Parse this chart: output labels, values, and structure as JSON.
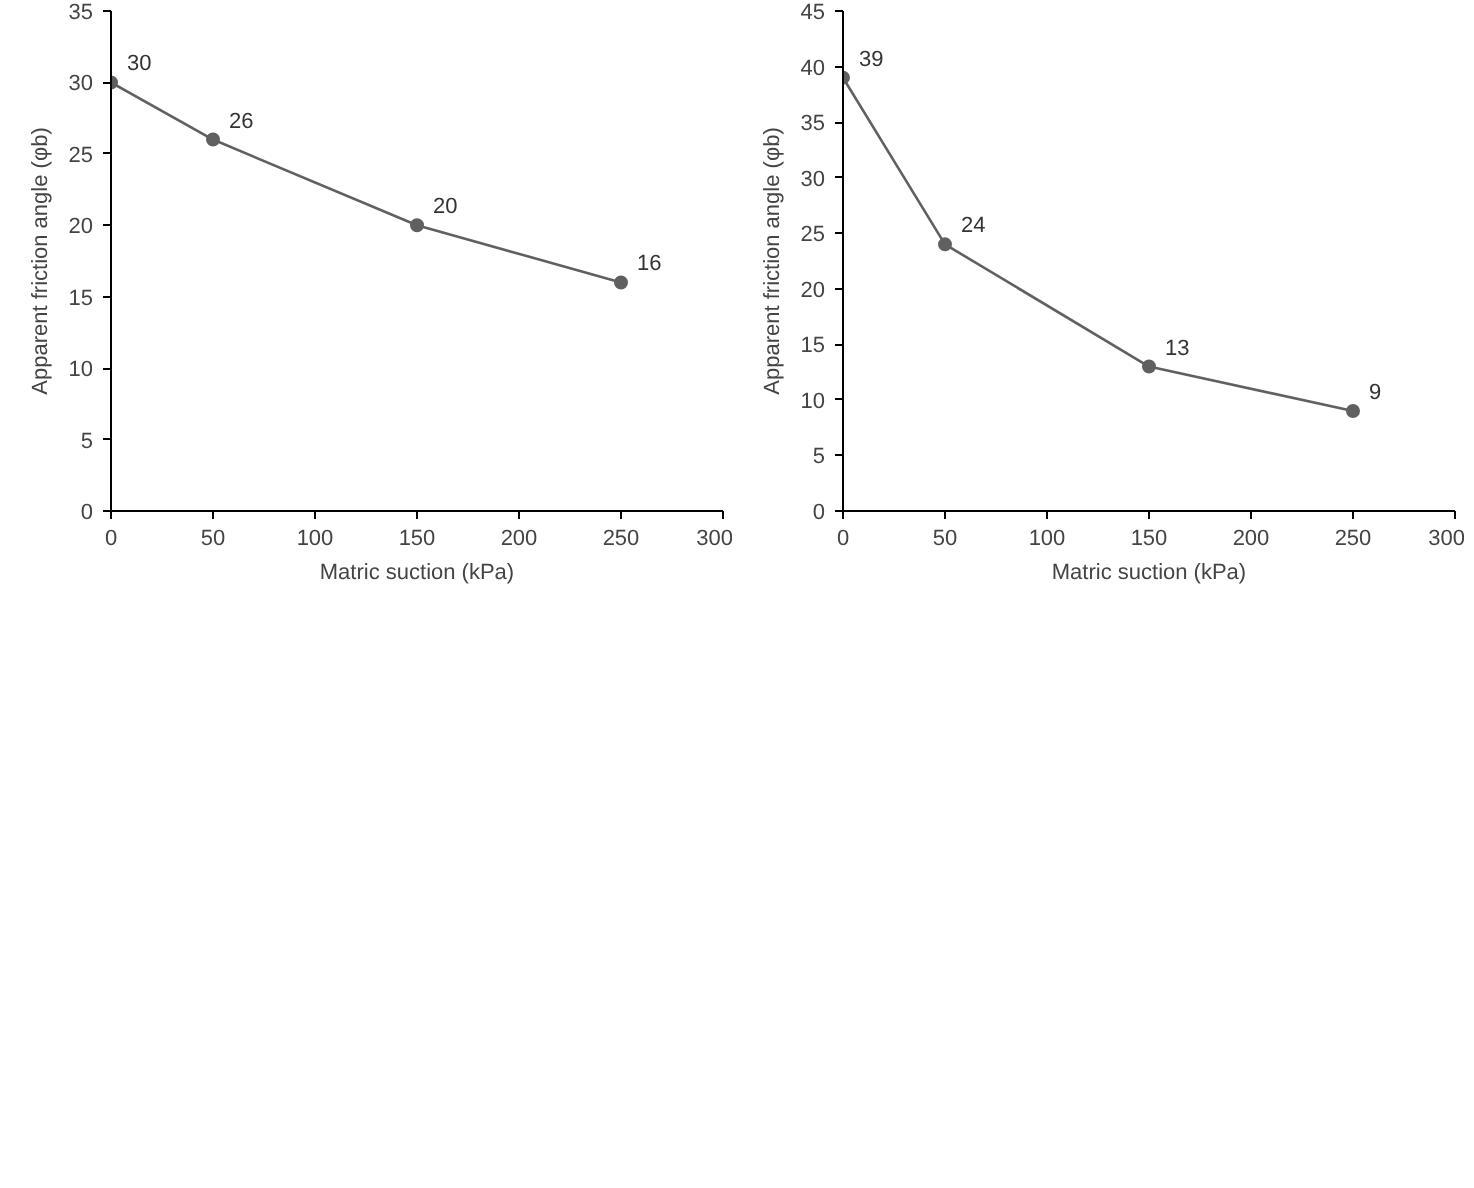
{
  "chart_data": [
    {
      "type": "line",
      "x": [
        0,
        50,
        150,
        250
      ],
      "xlim": [
        0,
        300
      ],
      "xticks": [
        0,
        50,
        100,
        150,
        200,
        250,
        300
      ],
      "ylim": [
        0,
        35
      ],
      "yticks": [
        0,
        5,
        10,
        15,
        20,
        25,
        30,
        35
      ],
      "xlabel": "Matric suction (kPa)",
      "ylabel": "Apparent friction angle (φb)",
      "grid": false,
      "marker": "circle",
      "data_labels": true,
      "series": [
        {
          "color": "#606060",
          "values": [
            30,
            26,
            20,
            16
          ]
        }
      ]
    },
    {
      "type": "line",
      "x": [
        0,
        50,
        150,
        250
      ],
      "xlim": [
        0,
        300
      ],
      "xticks": [
        0,
        50,
        100,
        150,
        200,
        250,
        300
      ],
      "ylim": [
        0,
        45
      ],
      "yticks": [
        0,
        5,
        10,
        15,
        20,
        25,
        30,
        35,
        40,
        45
      ],
      "xlabel": "Matric suction (kPa)",
      "ylabel": "Apparent friction angle (φb)",
      "grid": false,
      "marker": "circle",
      "data_labels": true,
      "series": [
        {
          "color": "#606060",
          "values": [
            39,
            24,
            13,
            9
          ]
        }
      ]
    }
  ]
}
